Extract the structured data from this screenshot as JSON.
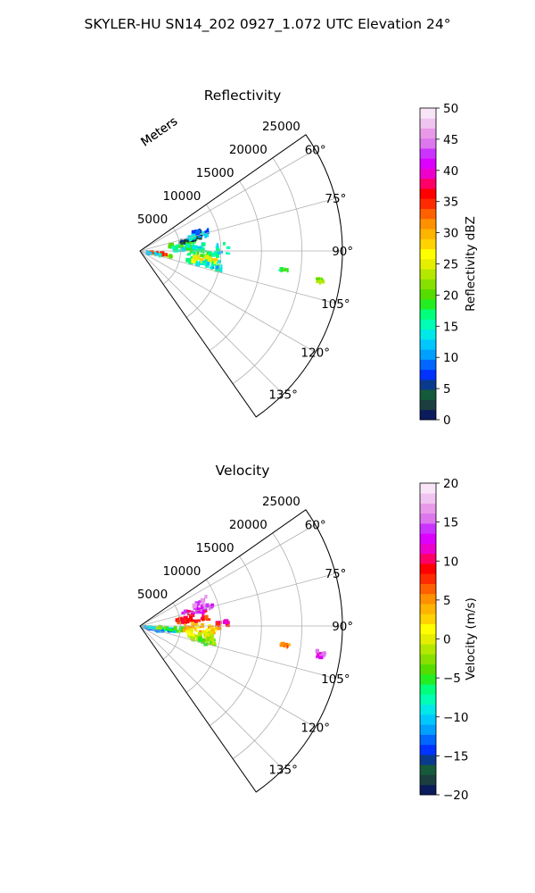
{
  "figure": {
    "suptitle": "SKYLER-HU  SN14_202  0927_1.072 UTC Elevation 24°"
  },
  "chart_data": [
    {
      "type": "heatmap",
      "projection": "polar-sector",
      "title": "Reflectivity",
      "radial_label": "Meters",
      "r_ticks": [
        5000,
        10000,
        15000,
        20000,
        25000
      ],
      "r_tick_labels": [
        "5000",
        "10000",
        "15000",
        "20000",
        "25000"
      ],
      "rlim": [
        0,
        25000
      ],
      "theta_range_deg": [
        55,
        145
      ],
      "theta_ticks": [
        60,
        75,
        90,
        105,
        120,
        135
      ],
      "theta_tick_labels": [
        "60°",
        "75°",
        "90°",
        "105°",
        "120°",
        "135°"
      ],
      "grid": true,
      "colorbar": {
        "label": "Reflectivity dBZ",
        "range": [
          0,
          50
        ],
        "ticks": [
          0,
          5,
          10,
          15,
          20,
          25,
          30,
          35,
          40,
          45,
          50
        ],
        "tick_labels": [
          "0",
          "5",
          "10",
          "15",
          "20",
          "25",
          "30",
          "35",
          "40",
          "45",
          "50"
        ],
        "colors": [
          "#0b1b5c",
          "#1b3f3f",
          "#155a3a",
          "#0a3a8c",
          "#0033ff",
          "#0066ff",
          "#00a0ff",
          "#00c8ff",
          "#00e8e8",
          "#00ffb4",
          "#00ff7a",
          "#22ee22",
          "#55dd00",
          "#88e000",
          "#b4e800",
          "#e6ee00",
          "#ffff00",
          "#ffd200",
          "#ffb400",
          "#ff9000",
          "#ff6000",
          "#ff2a00",
          "#ff0000",
          "#ff0066",
          "#ee00cc",
          "#dd00ff",
          "#cc33ff",
          "#dd77ee",
          "#e89ae8",
          "#f0c4f0",
          "#f8e6f8"
        ]
      },
      "echo_regions": [
        {
          "az": [
            98,
            102
          ],
          "r": [
            500,
            4000
          ],
          "value": 22
        },
        {
          "az": [
            96,
            99
          ],
          "r": [
            1000,
            3500
          ],
          "value": 34
        },
        {
          "az": [
            100,
            104
          ],
          "r": [
            600,
            2600
          ],
          "value": 14
        },
        {
          "az": [
            78,
            86
          ],
          "r": [
            3500,
            7000
          ],
          "value": 18
        },
        {
          "az": [
            74,
            80
          ],
          "r": [
            5000,
            8000
          ],
          "value": 3
        },
        {
          "az": [
            72,
            78
          ],
          "r": [
            6000,
            9000
          ],
          "value": 13
        },
        {
          "az": [
            84,
            90
          ],
          "r": [
            4000,
            8000
          ],
          "value": 15
        },
        {
          "az": [
            90,
            95
          ],
          "r": [
            6000,
            10000
          ],
          "value": 18
        },
        {
          "az": [
            96,
            104
          ],
          "r": [
            6000,
            10000
          ],
          "value": 16
        },
        {
          "az": [
            95,
            101
          ],
          "r": [
            6500,
            9500
          ],
          "value": 26
        },
        {
          "az": [
            85,
            92
          ],
          "r": [
            9500,
            11000
          ],
          "value": 14
        },
        {
          "az": [
            100,
            104
          ],
          "r": [
            8000,
            10500
          ],
          "value": 12
        },
        {
          "az": [
            70,
            74
          ],
          "r": [
            7000,
            9000
          ],
          "value": 6
        },
        {
          "az": [
            97,
            98
          ],
          "r": [
            17500,
            18500
          ],
          "value": 17
        },
        {
          "az": [
            98,
            100
          ],
          "r": [
            22000,
            23000
          ],
          "value": 22
        }
      ]
    },
    {
      "type": "heatmap",
      "projection": "polar-sector",
      "title": "Velocity",
      "radial_label": "Meters",
      "r_ticks": [
        5000,
        10000,
        15000,
        20000,
        25000
      ],
      "r_tick_labels": [
        "5000",
        "10000",
        "15000",
        "20000",
        "25000"
      ],
      "rlim": [
        0,
        25000
      ],
      "theta_range_deg": [
        55,
        145
      ],
      "theta_ticks": [
        60,
        75,
        90,
        105,
        120,
        135
      ],
      "theta_tick_labels": [
        "60°",
        "75°",
        "90°",
        "105°",
        "120°",
        "135°"
      ],
      "grid": true,
      "colorbar": {
        "label": "Velocity (m/s)",
        "range": [
          -20,
          20
        ],
        "ticks": [
          -20,
          -15,
          -10,
          -5,
          0,
          5,
          10,
          15,
          20
        ],
        "tick_labels": [
          "−20",
          "−15",
          "−10",
          "−5",
          "0",
          "5",
          "10",
          "15",
          "20"
        ],
        "colors": [
          "#0b1b5c",
          "#1b3f3f",
          "#155a3a",
          "#0a3a8c",
          "#0033ff",
          "#0066ff",
          "#00a0ff",
          "#00c8ff",
          "#00e8e8",
          "#00ffb4",
          "#00ff7a",
          "#22ee22",
          "#55dd00",
          "#88e000",
          "#b4e800",
          "#e6ee00",
          "#ffff00",
          "#ffd200",
          "#ffb400",
          "#ff9000",
          "#ff6000",
          "#ff2a00",
          "#ff0000",
          "#ff0066",
          "#ee00cc",
          "#dd00ff",
          "#cc33ff",
          "#dd77ee",
          "#e89ae8",
          "#f0c4f0",
          "#f8e6f8"
        ]
      },
      "echo_regions": [
        {
          "az": [
            100,
            106
          ],
          "r": [
            400,
            3000
          ],
          "value": -12
        },
        {
          "az": [
            96,
            101
          ],
          "r": [
            800,
            4500
          ],
          "value": -11
        },
        {
          "az": [
            92,
            98
          ],
          "r": [
            2000,
            5500
          ],
          "value": -4
        },
        {
          "az": [
            78,
            86
          ],
          "r": [
            4500,
            8500
          ],
          "value": 9
        },
        {
          "az": [
            72,
            78
          ],
          "r": [
            5500,
            8500
          ],
          "value": 12
        },
        {
          "az": [
            73,
            76
          ],
          "r": [
            8000,
            9500
          ],
          "value": 15
        },
        {
          "az": [
            88,
            96
          ],
          "r": [
            5500,
            10000
          ],
          "value": 3
        },
        {
          "az": [
            94,
            101
          ],
          "r": [
            6000,
            9000
          ],
          "value": 0
        },
        {
          "az": [
            100,
            106
          ],
          "r": [
            6500,
            9500
          ],
          "value": -3
        },
        {
          "az": [
            86,
            90
          ],
          "r": [
            9500,
            11000
          ],
          "value": 10
        },
        {
          "az": [
            66,
            70
          ],
          "r": [
            7000,
            9000
          ],
          "value": 15
        },
        {
          "az": [
            97,
            98
          ],
          "r": [
            17500,
            18500
          ],
          "value": 6
        },
        {
          "az": [
            98,
            100
          ],
          "r": [
            22000,
            23000
          ],
          "value": 14
        }
      ]
    }
  ]
}
